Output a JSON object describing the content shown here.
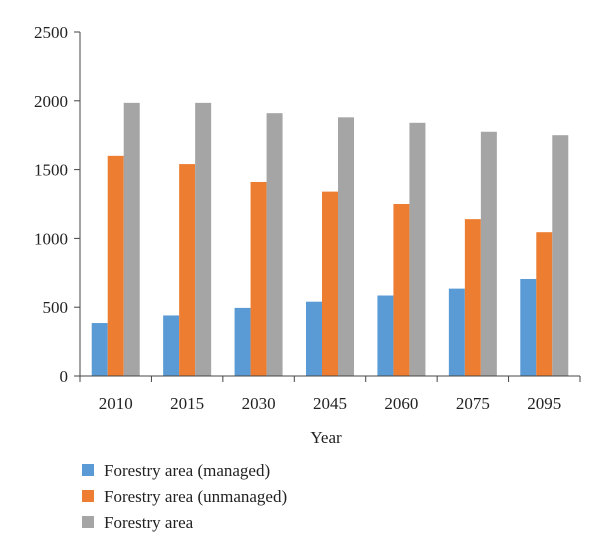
{
  "chart_data": {
    "type": "bar",
    "xlabel": "Year",
    "ylabel": "",
    "categories": [
      "2010",
      "2015",
      "2030",
      "2045",
      "2060",
      "2075",
      "2095"
    ],
    "ylim": [
      0,
      2500
    ],
    "yticks": [
      0,
      500,
      1000,
      1500,
      2000,
      2500
    ],
    "grid": false,
    "legend": "bottom-left",
    "series": [
      {
        "name": "Forestry area (managed)",
        "color": "#5B9BD5",
        "values": [
          385,
          440,
          495,
          540,
          585,
          635,
          705
        ]
      },
      {
        "name": "Forestry area (unmanaged)",
        "color": "#ED7D31",
        "values": [
          1600,
          1540,
          1410,
          1340,
          1250,
          1140,
          1045
        ]
      },
      {
        "name": "Forestry area",
        "color": "#A5A5A5",
        "values": [
          1985,
          1985,
          1910,
          1880,
          1840,
          1775,
          1750
        ]
      }
    ]
  }
}
